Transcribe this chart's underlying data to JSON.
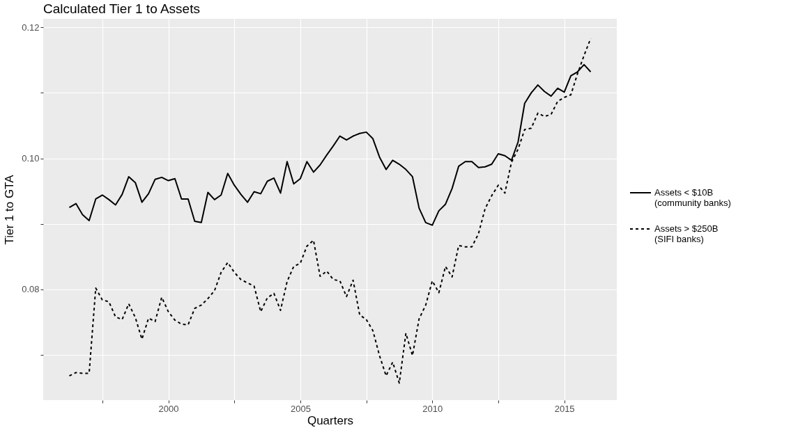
{
  "chart_data": {
    "type": "line",
    "title": "Calculated Tier 1 to Assets",
    "xlabel": "Quarters",
    "ylabel": "Tier 1 to GTA",
    "x": [
      1996.25,
      1996.5,
      1996.75,
      1997,
      1997.25,
      1997.5,
      1997.75,
      1998,
      1998.25,
      1998.5,
      1998.75,
      1999,
      1999.25,
      1999.5,
      1999.75,
      2000,
      2000.25,
      2000.5,
      2000.75,
      2001,
      2001.25,
      2001.5,
      2001.75,
      2002,
      2002.25,
      2002.5,
      2002.75,
      2003,
      2003.25,
      2003.5,
      2003.75,
      2004,
      2004.25,
      2004.5,
      2004.75,
      2005,
      2005.25,
      2005.5,
      2005.75,
      2006,
      2006.25,
      2006.5,
      2006.75,
      2007,
      2007.25,
      2007.5,
      2007.75,
      2008,
      2008.25,
      2008.5,
      2008.75,
      2009,
      2009.25,
      2009.5,
      2009.75,
      2010,
      2010.25,
      2010.5,
      2010.75,
      2011,
      2011.25,
      2011.5,
      2011.75,
      2012,
      2012.25,
      2012.5,
      2012.75,
      2013,
      2013.25,
      2013.5,
      2013.75,
      2014,
      2014.25,
      2014.5,
      2014.75,
      2015,
      2015.25,
      2015.5,
      2015.75,
      2016
    ],
    "series": [
      {
        "name": "Assets < $10B\n (community banks)",
        "color": "#000000",
        "line_style": "solid",
        "values": [
          0.0925,
          0.0931,
          0.0914,
          0.0905,
          0.0938,
          0.0944,
          0.0937,
          0.0929,
          0.0945,
          0.0972,
          0.0963,
          0.0933,
          0.0946,
          0.0968,
          0.0971,
          0.0966,
          0.0969,
          0.0938,
          0.0938,
          0.0904,
          0.0902,
          0.0948,
          0.0937,
          0.0944,
          0.0977,
          0.0959,
          0.0945,
          0.0933,
          0.0949,
          0.0946,
          0.0965,
          0.097,
          0.0947,
          0.0995,
          0.0961,
          0.0969,
          0.0995,
          0.0979,
          0.099,
          0.1005,
          0.1019,
          0.1034,
          0.1028,
          0.1034,
          0.1038,
          0.104,
          0.103,
          0.1002,
          0.0983,
          0.0997,
          0.0991,
          0.0983,
          0.0972,
          0.0924,
          0.0902,
          0.0898,
          0.092,
          0.093,
          0.0954,
          0.0988,
          0.0995,
          0.0995,
          0.0986,
          0.0987,
          0.0991,
          0.1007,
          0.1004,
          0.0997,
          0.1025,
          0.1084,
          0.11,
          0.1112,
          0.1102,
          0.1095,
          0.1107,
          0.1101,
          0.1126,
          0.1132,
          0.1143,
          0.1132
        ]
      },
      {
        "name": "Assets > $250B\n (SIFI banks)",
        "color": "#000000",
        "line_style": "dashed",
        "values": [
          0.0668,
          0.0673,
          0.0672,
          0.0672,
          0.0802,
          0.0784,
          0.0781,
          0.0758,
          0.0754,
          0.0778,
          0.0757,
          0.0724,
          0.0756,
          0.0751,
          0.0788,
          0.0766,
          0.0753,
          0.0747,
          0.0746,
          0.0771,
          0.0776,
          0.0786,
          0.0798,
          0.0826,
          0.0841,
          0.0826,
          0.0815,
          0.081,
          0.0805,
          0.0766,
          0.0787,
          0.0794,
          0.0768,
          0.0812,
          0.0835,
          0.084,
          0.0866,
          0.0875,
          0.082,
          0.0828,
          0.0815,
          0.0813,
          0.0789,
          0.0814,
          0.0761,
          0.0754,
          0.0737,
          0.0699,
          0.0668,
          0.0689,
          0.0657,
          0.0733,
          0.0699,
          0.0755,
          0.0776,
          0.0813,
          0.0795,
          0.0835,
          0.0819,
          0.0867,
          0.0865,
          0.0865,
          0.0885,
          0.0923,
          0.0943,
          0.0959,
          0.0947,
          0.0994,
          0.1014,
          0.1044,
          0.1046,
          0.1069,
          0.1064,
          0.1067,
          0.1087,
          0.1093,
          0.1097,
          0.1129,
          0.1157,
          0.1183
        ]
      }
    ],
    "xlim": [
      1995.26,
      2016.99
    ],
    "xticks": [
      {
        "value": 1997.5,
        "label": null
      },
      2000,
      {
        "value": 2002.5,
        "label": null
      },
      2005,
      {
        "value": 2007.5,
        "label": null
      },
      2010,
      {
        "value": 2012.5,
        "label": null
      },
      2015
    ],
    "ylim": [
      0.0631,
      0.1213
    ],
    "yticks": [
      {
        "value": 0.07,
        "label": null
      },
      0.08,
      {
        "value": 0.09,
        "label": null
      },
      {
        "value": 0.1,
        "label": "0.10"
      },
      {
        "value": 0.11,
        "label": null
      },
      0.12
    ],
    "grid": true,
    "legend": "right"
  }
}
